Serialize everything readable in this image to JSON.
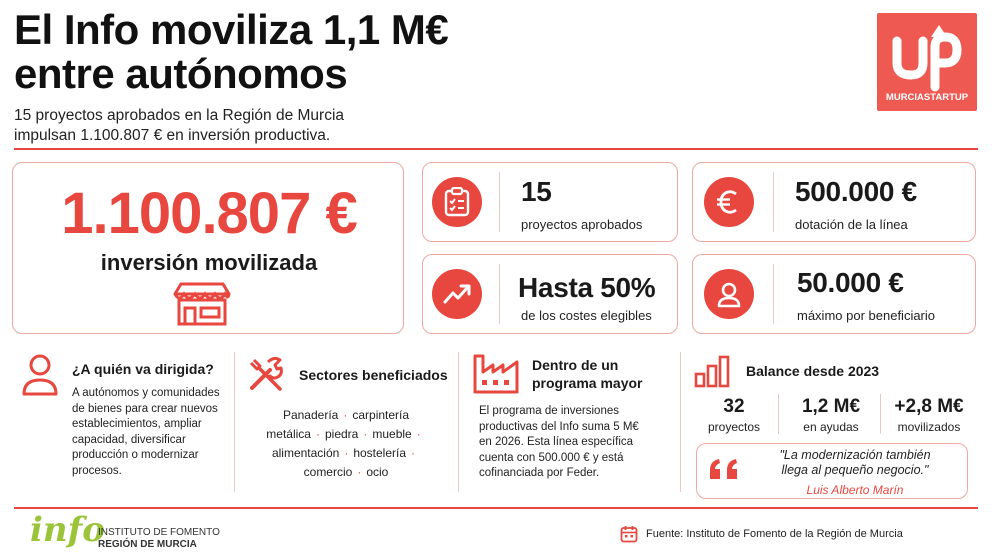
{
  "header": {
    "title_line1": "El Info moviliza 1,1 M€",
    "title_line2": "entre autónomos",
    "subtitle_line1": "15 proyectos aprobados en la Región de Murcia",
    "subtitle_line2": "impulsan 1.100.807 € en inversión productiva."
  },
  "logo": {
    "text": "MURCIASTARTUP",
    "mark": "UP",
    "icon": "startup-up-logo"
  },
  "hero": {
    "value": "1.100.807 €",
    "label": "inversión movilizada",
    "icon": "storefront-icon"
  },
  "stats": [
    {
      "value": "15",
      "label": "proyectos aprobados",
      "icon": "clipboard-check-icon"
    },
    {
      "value": "500.000 €",
      "label": "dotación de la línea",
      "icon": "euro-icon"
    },
    {
      "value": "Hasta 50%",
      "label": "de los costes elegibles",
      "icon": "trend-up-icon"
    },
    {
      "value": "50.000 €",
      "label": "máximo por beneficiario",
      "icon": "user-icon"
    }
  ],
  "sections": {
    "audience": {
      "title": "¿A quién va dirigida?",
      "lines": [
        "A autónomos y comunidades",
        "de bienes para crear nuevos",
        "establecimientos, ampliar",
        "capacidad, diversificar",
        "producción o modernizar",
        "procesos."
      ],
      "icon": "person-icon"
    },
    "sectors": {
      "title": "Sectores beneficiados",
      "tags": [
        "Panadería",
        "carpintería",
        "metálica",
        "piedra",
        "mueble",
        "alimentación",
        "hostelería",
        "comercio",
        "ocio"
      ],
      "icon": "tools-icon"
    },
    "program": {
      "title_line1": "Dentro de un",
      "title_line2": "programa mayor",
      "lines": [
        "El programa de inversiones",
        "productivas del Info suma 5 M€",
        "en 2026. Esta línea específica",
        "cuenta con 500.000 € y está",
        "cofinanciada por Feder."
      ],
      "icon": "factory-icon"
    },
    "balance": {
      "title": "Balance desde 2023",
      "icon": "bar-chart-icon",
      "items": [
        {
          "value": "32",
          "label": "proyectos"
        },
        {
          "value": "1,2 M€",
          "label": "en ayudas"
        },
        {
          "value": "+2,8 M€",
          "label": "movilizados"
        }
      ],
      "quote_line1": "\"La modernización también",
      "quote_line2": "llega al pequeño negocio.\"",
      "quote_author": "Luis Alberto Marín",
      "quote_icon": "quote-marks-icon"
    }
  },
  "footer": {
    "brand": "info",
    "brand_line1": "INSTITUTO DE FOMENTO",
    "brand_line2": "REGIÓN DE MURCIA",
    "source": "Fuente: Instituto de Fomento de la Región de Murcia",
    "source_icon": "calendar-icon"
  },
  "colors": {
    "accent": "#e8473f",
    "accent_light": "#f0a8a3",
    "text": "#1a1a1a",
    "brand_green": "#9bc43b"
  }
}
